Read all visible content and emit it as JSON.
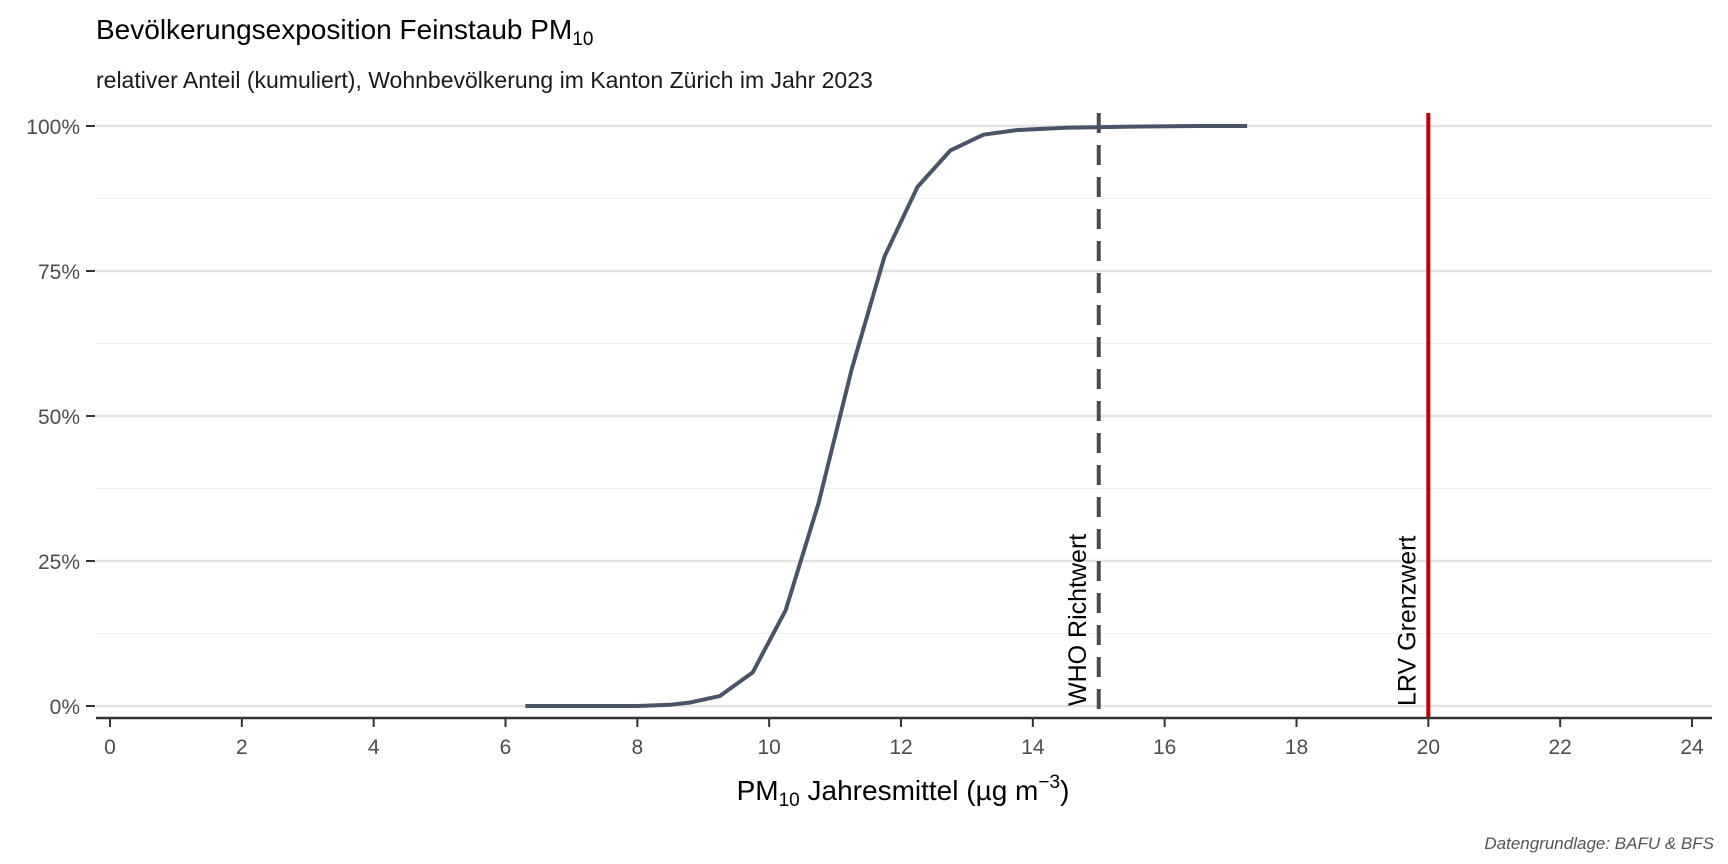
{
  "chart_data": {
    "type": "line",
    "title": "Bevölkerungsexposition Feinstaub PM",
    "title_subscript": "10",
    "subtitle": "relativer Anteil (kumuliert), Wohnbevölkerung im Kanton Zürich im Jahr 2023",
    "xlabel": {
      "prefix": "PM",
      "subscript": "10",
      "middle": " Jahresmittel (µg m",
      "superscript": "−3",
      "suffix": ")"
    },
    "ylabel": "",
    "xlim": [
      0,
      24
    ],
    "ylim": [
      0,
      1
    ],
    "x_ticks": [
      0,
      2,
      4,
      6,
      8,
      10,
      12,
      14,
      16,
      18,
      20,
      22,
      24
    ],
    "y_ticks": [
      0,
      0.25,
      0.5,
      0.75,
      1.0
    ],
    "y_tick_labels": [
      "0%",
      "25%",
      "50%",
      "75%",
      "100%"
    ],
    "grid": true,
    "series": [
      {
        "color": "#4a5468",
        "points": [
          [
            6.3,
            0.0
          ],
          [
            7.0,
            0.0
          ],
          [
            7.5,
            0.0
          ],
          [
            8.0,
            0.0
          ],
          [
            8.5,
            0.002
          ],
          [
            8.8,
            0.006
          ],
          [
            9.25,
            0.017
          ],
          [
            9.75,
            0.058
          ],
          [
            10.25,
            0.165
          ],
          [
            10.75,
            0.35
          ],
          [
            11.25,
            0.58
          ],
          [
            11.75,
            0.775
          ],
          [
            12.25,
            0.895
          ],
          [
            12.75,
            0.958
          ],
          [
            13.25,
            0.985
          ],
          [
            13.75,
            0.993
          ],
          [
            14.5,
            0.997
          ],
          [
            15.5,
            0.999
          ],
          [
            16.5,
            1.0
          ],
          [
            17.25,
            1.0
          ]
        ]
      }
    ],
    "reference_lines": [
      {
        "x": 15,
        "label": "WHO Richtwert",
        "style": "dashed",
        "color": "#4d4d4d"
      },
      {
        "x": 20,
        "label": "LRV Grenzwert",
        "style": "solid",
        "color": "#c00000"
      }
    ],
    "caption": "Datengrundlage: BAFU & BFS"
  }
}
